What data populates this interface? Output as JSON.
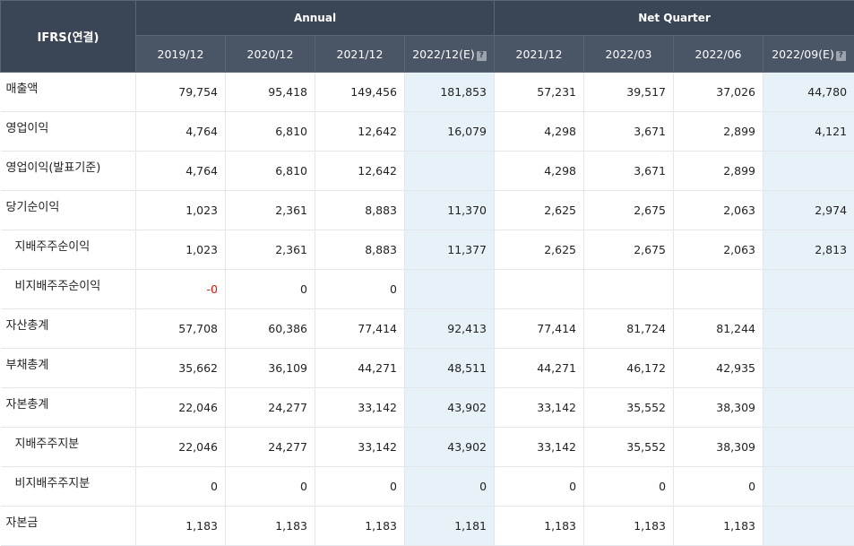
{
  "header": {
    "corner": "IFRS(연결)",
    "annual": "Annual",
    "net_quarter": "Net Quarter",
    "help_icon": "question-icon",
    "periods": [
      "2019/12",
      "2020/12",
      "2021/12",
      "2022/12(E)",
      "2021/12",
      "2022/03",
      "2022/06",
      "2022/09(E)"
    ],
    "estimate_flags": [
      false,
      false,
      false,
      true,
      false,
      false,
      false,
      true
    ]
  },
  "colors": {
    "header_bg": "#3a4656",
    "estimate_bg": "#e6f2f8",
    "negative": "#e8140c"
  },
  "rows": [
    {
      "label": "매출액",
      "sub": false,
      "values": [
        "79,754",
        "95,418",
        "149,456",
        "181,853",
        "57,231",
        "39,517",
        "37,026",
        "44,780"
      ]
    },
    {
      "label": "영업이익",
      "sub": false,
      "values": [
        "4,764",
        "6,810",
        "12,642",
        "16,079",
        "4,298",
        "3,671",
        "2,899",
        "4,121"
      ]
    },
    {
      "label": "영업이익(발표기준)",
      "sub": false,
      "values": [
        "4,764",
        "6,810",
        "12,642",
        "",
        "4,298",
        "3,671",
        "2,899",
        ""
      ]
    },
    {
      "label": "당기순이익",
      "sub": false,
      "values": [
        "1,023",
        "2,361",
        "8,883",
        "11,370",
        "2,625",
        "2,675",
        "2,063",
        "2,974"
      ]
    },
    {
      "label": "지배주주순이익",
      "sub": true,
      "values": [
        "1,023",
        "2,361",
        "8,883",
        "11,377",
        "2,625",
        "2,675",
        "2,063",
        "2,813"
      ]
    },
    {
      "label": "비지배주주순이익",
      "sub": true,
      "values": [
        "-0",
        "0",
        "0",
        "",
        "",
        "",
        "",
        ""
      ]
    },
    {
      "label": "자산총계",
      "sub": false,
      "values": [
        "57,708",
        "60,386",
        "77,414",
        "92,413",
        "77,414",
        "81,724",
        "81,244",
        ""
      ]
    },
    {
      "label": "부채총계",
      "sub": false,
      "values": [
        "35,662",
        "36,109",
        "44,271",
        "48,511",
        "44,271",
        "46,172",
        "42,935",
        ""
      ]
    },
    {
      "label": "자본총계",
      "sub": false,
      "values": [
        "22,046",
        "24,277",
        "33,142",
        "43,902",
        "33,142",
        "35,552",
        "38,309",
        ""
      ]
    },
    {
      "label": "지배주주지분",
      "sub": true,
      "values": [
        "22,046",
        "24,277",
        "33,142",
        "43,902",
        "33,142",
        "35,552",
        "38,309",
        ""
      ]
    },
    {
      "label": "비지배주주지분",
      "sub": true,
      "values": [
        "0",
        "0",
        "0",
        "0",
        "0",
        "0",
        "0",
        ""
      ]
    },
    {
      "label": "자본금",
      "sub": false,
      "values": [
        "1,183",
        "1,183",
        "1,183",
        "1,181",
        "1,183",
        "1,183",
        "1,183",
        ""
      ]
    }
  ]
}
